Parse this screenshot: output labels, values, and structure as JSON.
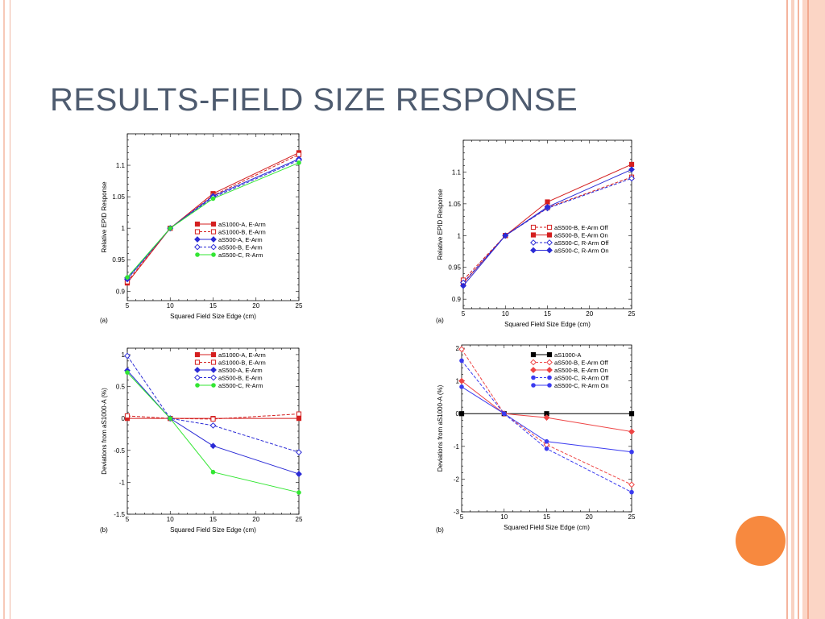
{
  "slide": {
    "title": "RESULTS-FIELD SIZE RESPONSE"
  },
  "colors": {
    "title": "#4e5b6f",
    "accent_circle": "#f7893f",
    "frame": "#f7c9b8",
    "red": "#d41f1f",
    "blue": "#2b2bd6",
    "green": "#33e633",
    "black": "#000000"
  },
  "chart_data": [
    {
      "id": "top-left",
      "type": "line",
      "panel_label": "(a)",
      "xlabel": "Squared Field Size Edge (cm)",
      "ylabel": "Relative EPID Response",
      "xlim": [
        5,
        25
      ],
      "ylim": [
        0.885,
        1.15
      ],
      "xticks": [
        5,
        10,
        15,
        20,
        25
      ],
      "yticks": [
        0.9,
        0.95,
        1,
        1.05,
        1.1
      ],
      "ytick_labels": [
        "0.9",
        "0.95",
        "1",
        "1.05",
        "1.1"
      ],
      "legend_position": "center-right",
      "x": [
        5,
        10,
        15,
        25
      ],
      "series": [
        {
          "name": "aS1000-A, E-Arm",
          "color": "#d41f1f",
          "dash": false,
          "marker": "square-filled",
          "values": [
            0.913,
            1.0,
            1.055,
            1.12
          ]
        },
        {
          "name": "aS1000-B, E-Arm",
          "color": "#d41f1f",
          "dash": true,
          "marker": "square-open",
          "values": [
            0.915,
            1.0,
            1.052,
            1.117
          ]
        },
        {
          "name": "aS500-A, E-Arm",
          "color": "#2b2bd6",
          "dash": false,
          "marker": "diamond-filled",
          "values": [
            0.919,
            1.0,
            1.051,
            1.11
          ]
        },
        {
          "name": "aS500-B, E-Arm",
          "color": "#2b2bd6",
          "dash": true,
          "marker": "diamond-open",
          "values": [
            0.921,
            1.0,
            1.049,
            1.108
          ]
        },
        {
          "name": "aS500-C, R-Arm",
          "color": "#33e633",
          "dash": false,
          "marker": "star",
          "values": [
            0.922,
            1.0,
            1.047,
            1.104
          ]
        }
      ]
    },
    {
      "id": "top-right",
      "type": "line",
      "panel_label": "(a)",
      "xlabel": "Squared Field Size Edge (cm)",
      "ylabel": "Relative EPID Response",
      "xlim": [
        5,
        25
      ],
      "ylim": [
        0.885,
        1.15
      ],
      "xticks": [
        5,
        10,
        15,
        20,
        25
      ],
      "yticks": [
        0.9,
        0.95,
        1,
        1.05,
        1.1
      ],
      "ytick_labels": [
        "0.9",
        "0.95",
        "1",
        "1.05",
        "1.1"
      ],
      "legend_position": "center-right",
      "x": [
        5,
        10,
        15,
        25
      ],
      "series": [
        {
          "name": "aS500-B, E-Arm Off",
          "color": "#d41f1f",
          "dash": true,
          "marker": "square-open",
          "values": [
            0.93,
            1.0,
            1.044,
            1.092
          ]
        },
        {
          "name": "aS500-B, E-Arm On",
          "color": "#d41f1f",
          "dash": false,
          "marker": "square-filled",
          "values": [
            0.925,
            1.0,
            1.053,
            1.112
          ]
        },
        {
          "name": "aS500-C, R-Arm Off",
          "color": "#2b2bd6",
          "dash": true,
          "marker": "diamond-open",
          "values": [
            0.926,
            1.0,
            1.043,
            1.09
          ]
        },
        {
          "name": "aS500-C, R-Arm On",
          "color": "#2b2bd6",
          "dash": false,
          "marker": "diamond-filled",
          "values": [
            0.921,
            1.0,
            1.045,
            1.104
          ]
        }
      ]
    },
    {
      "id": "bottom-left",
      "type": "line",
      "panel_label": "(b)",
      "xlabel": "Squared Field Size Edge (cm)",
      "ylabel": "Deviations from aS1000-A (%)",
      "xlim": [
        5,
        25
      ],
      "ylim": [
        -1.5,
        1.1
      ],
      "xticks": [
        5,
        10,
        15,
        20,
        25
      ],
      "yticks": [
        -1.5,
        -1,
        -0.5,
        0,
        0.5,
        1
      ],
      "ytick_labels": [
        "-1.5",
        "-1",
        "-0.5",
        "0",
        "0.5",
        "1"
      ],
      "legend_position": "top-right",
      "x": [
        5,
        10,
        15,
        25
      ],
      "series": [
        {
          "name": "aS1000-A, E-Arm",
          "color": "#d41f1f",
          "dash": false,
          "marker": "square-filled",
          "values": [
            0.0,
            0.0,
            0.0,
            0.0
          ]
        },
        {
          "name": "aS1000-B, E-Arm",
          "color": "#d41f1f",
          "dash": true,
          "marker": "square-open",
          "values": [
            0.04,
            0.0,
            -0.01,
            0.07
          ]
        },
        {
          "name": "aS500-A, E-Arm",
          "color": "#2b2bd6",
          "dash": false,
          "marker": "diamond-filled",
          "values": [
            0.75,
            0.0,
            -0.43,
            -0.87
          ]
        },
        {
          "name": "aS500-B, E-Arm",
          "color": "#2b2bd6",
          "dash": true,
          "marker": "diamond-open",
          "values": [
            0.98,
            0.0,
            -0.11,
            -0.53
          ]
        },
        {
          "name": "aS500-C, R-Arm",
          "color": "#33e633",
          "dash": false,
          "marker": "star",
          "values": [
            0.72,
            0.0,
            -0.84,
            -1.16
          ]
        }
      ]
    },
    {
      "id": "bottom-right",
      "type": "line",
      "panel_label": "(b)",
      "xlabel": "Squared Field Size Edge (cm)",
      "ylabel": "Deviations from aS1000-A (%)",
      "xlim": [
        5,
        25
      ],
      "ylim": [
        -3,
        2.1
      ],
      "xticks": [
        5,
        10,
        15,
        20,
        25
      ],
      "yticks": [
        -3,
        -2,
        -1,
        0,
        1,
        2
      ],
      "ytick_labels": [
        "-3",
        "-2",
        "-1",
        "0",
        "1",
        "2"
      ],
      "legend_position": "top-right",
      "x": [
        5,
        10,
        15,
        25
      ],
      "series": [
        {
          "name": "aS1000-A",
          "color": "#000000",
          "dash": false,
          "marker": "square-filled",
          "values": [
            0.0,
            0.0,
            0.0,
            0.0
          ]
        },
        {
          "name": "aS500-B, E-Arm Off",
          "color": "#ee4444",
          "dash": true,
          "marker": "diamond-open",
          "values": [
            1.97,
            0.0,
            -0.95,
            -2.17
          ]
        },
        {
          "name": "aS500-B, E-Arm On",
          "color": "#ee4444",
          "dash": false,
          "marker": "diamond-filled",
          "values": [
            1.0,
            0.0,
            -0.12,
            -0.55
          ]
        },
        {
          "name": "aS500-C, R-Arm Off",
          "color": "#3b3bf0",
          "dash": true,
          "marker": "star",
          "values": [
            1.62,
            0.0,
            -1.07,
            -2.4
          ]
        },
        {
          "name": "aS500-C, R-Arm On",
          "color": "#3b3bf0",
          "dash": false,
          "marker": "star",
          "values": [
            0.82,
            0.0,
            -0.85,
            -1.17
          ]
        }
      ]
    }
  ]
}
